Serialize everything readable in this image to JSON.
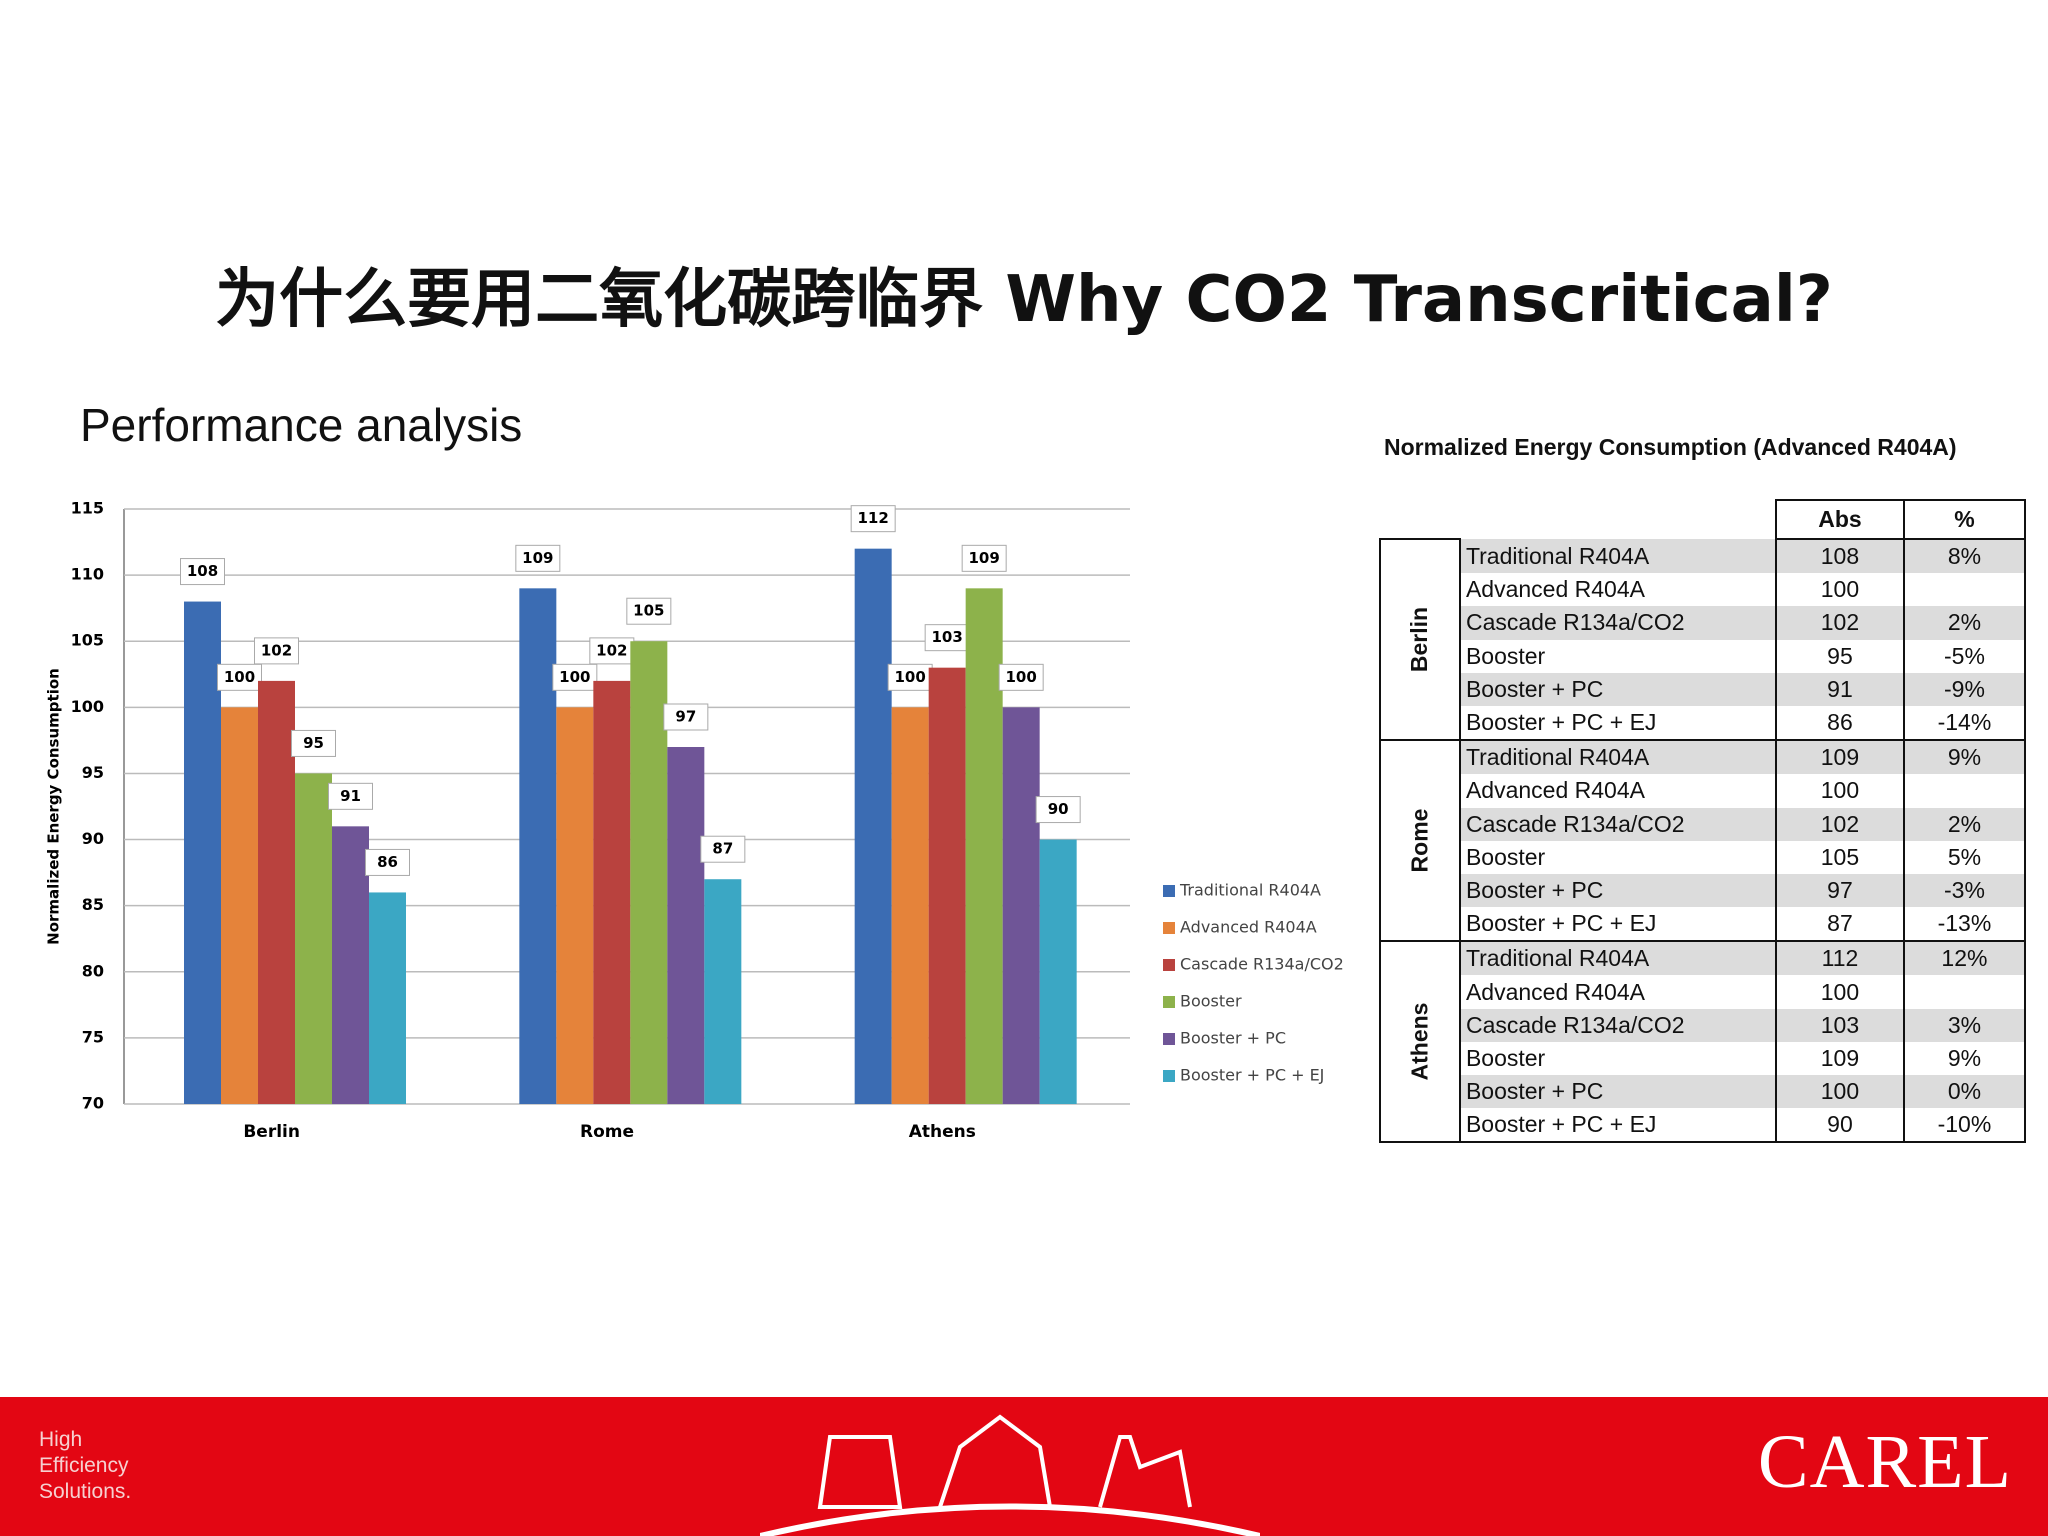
{
  "header": {
    "title": "为什么要用二氧化碳跨临界 Why CO2 Transcritical?",
    "subtitle": "Performance analysis"
  },
  "chart_data": {
    "type": "bar",
    "y_label": "Normalized Energy Consumption",
    "categories": [
      "Berlin",
      "Rome",
      "Athens"
    ],
    "series": [
      {
        "name": "Traditional R404A",
        "color": "#3b6cb3",
        "values": [
          108,
          109,
          112
        ]
      },
      {
        "name": "Advanced R404A",
        "color": "#e5833a",
        "values": [
          100,
          100,
          100
        ]
      },
      {
        "name": "Cascade R134a/CO2",
        "color": "#b9423e",
        "values": [
          102,
          102,
          103
        ]
      },
      {
        "name": "Booster",
        "color": "#8db24b",
        "values": [
          95,
          105,
          109
        ]
      },
      {
        "name": "Booster + PC",
        "color": "#6f5597",
        "values": [
          91,
          97,
          100
        ]
      },
      {
        "name": "Booster + PC + EJ",
        "color": "#3ba7c4",
        "values": [
          86,
          87,
          90
        ]
      }
    ],
    "ylim": [
      70,
      115
    ],
    "yticks": [
      70,
      75,
      80,
      85,
      90,
      95,
      100,
      105,
      110,
      115
    ],
    "grid": true,
    "legend": "right"
  },
  "table": {
    "title": "Normalized Energy Consumption (Advanced R404A)",
    "columns": [
      "Abs",
      "%"
    ],
    "groups": [
      {
        "name": "Berlin",
        "rows": [
          {
            "label": "Traditional R404A",
            "abs": "108",
            "pct": "8%"
          },
          {
            "label": "Advanced R404A",
            "abs": "100"
          },
          {
            "label": "Cascade R134a/CO2",
            "abs": "102",
            "pct": "2%"
          },
          {
            "label": "Booster",
            "abs": "95",
            "pct": "-5%"
          },
          {
            "label": "Booster + PC",
            "abs": "91",
            "pct": "-9%"
          },
          {
            "label": "Booster + PC + EJ",
            "abs": "86",
            "pct": "-14%"
          }
        ]
      },
      {
        "name": "Rome",
        "rows": [
          {
            "label": "Traditional R404A",
            "abs": "109",
            "pct": "9%"
          },
          {
            "label": "Advanced R404A",
            "abs": "100"
          },
          {
            "label": "Cascade R134a/CO2",
            "abs": "102",
            "pct": "2%"
          },
          {
            "label": "Booster",
            "abs": "105",
            "pct": "5%"
          },
          {
            "label": "Booster + PC",
            "abs": "97",
            "pct": "-3%"
          },
          {
            "label": "Booster + PC + EJ",
            "abs": "87",
            "pct": "-13%"
          }
        ]
      },
      {
        "name": "Athens",
        "rows": [
          {
            "label": "Traditional R404A",
            "abs": "112",
            "pct": "12%"
          },
          {
            "label": "Advanced R404A",
            "abs": "100"
          },
          {
            "label": "Cascade R134a/CO2",
            "abs": "103",
            "pct": "3%"
          },
          {
            "label": "Booster",
            "abs": "109",
            "pct": "9%"
          },
          {
            "label": "Booster + PC",
            "abs": "100",
            "pct": "0%"
          },
          {
            "label": "Booster + PC + EJ",
            "abs": "90",
            "pct": "-10%"
          }
        ]
      }
    ]
  },
  "footer": {
    "tagline": [
      "High",
      "Efficiency",
      "Solutions."
    ],
    "brand": "CAREL"
  }
}
